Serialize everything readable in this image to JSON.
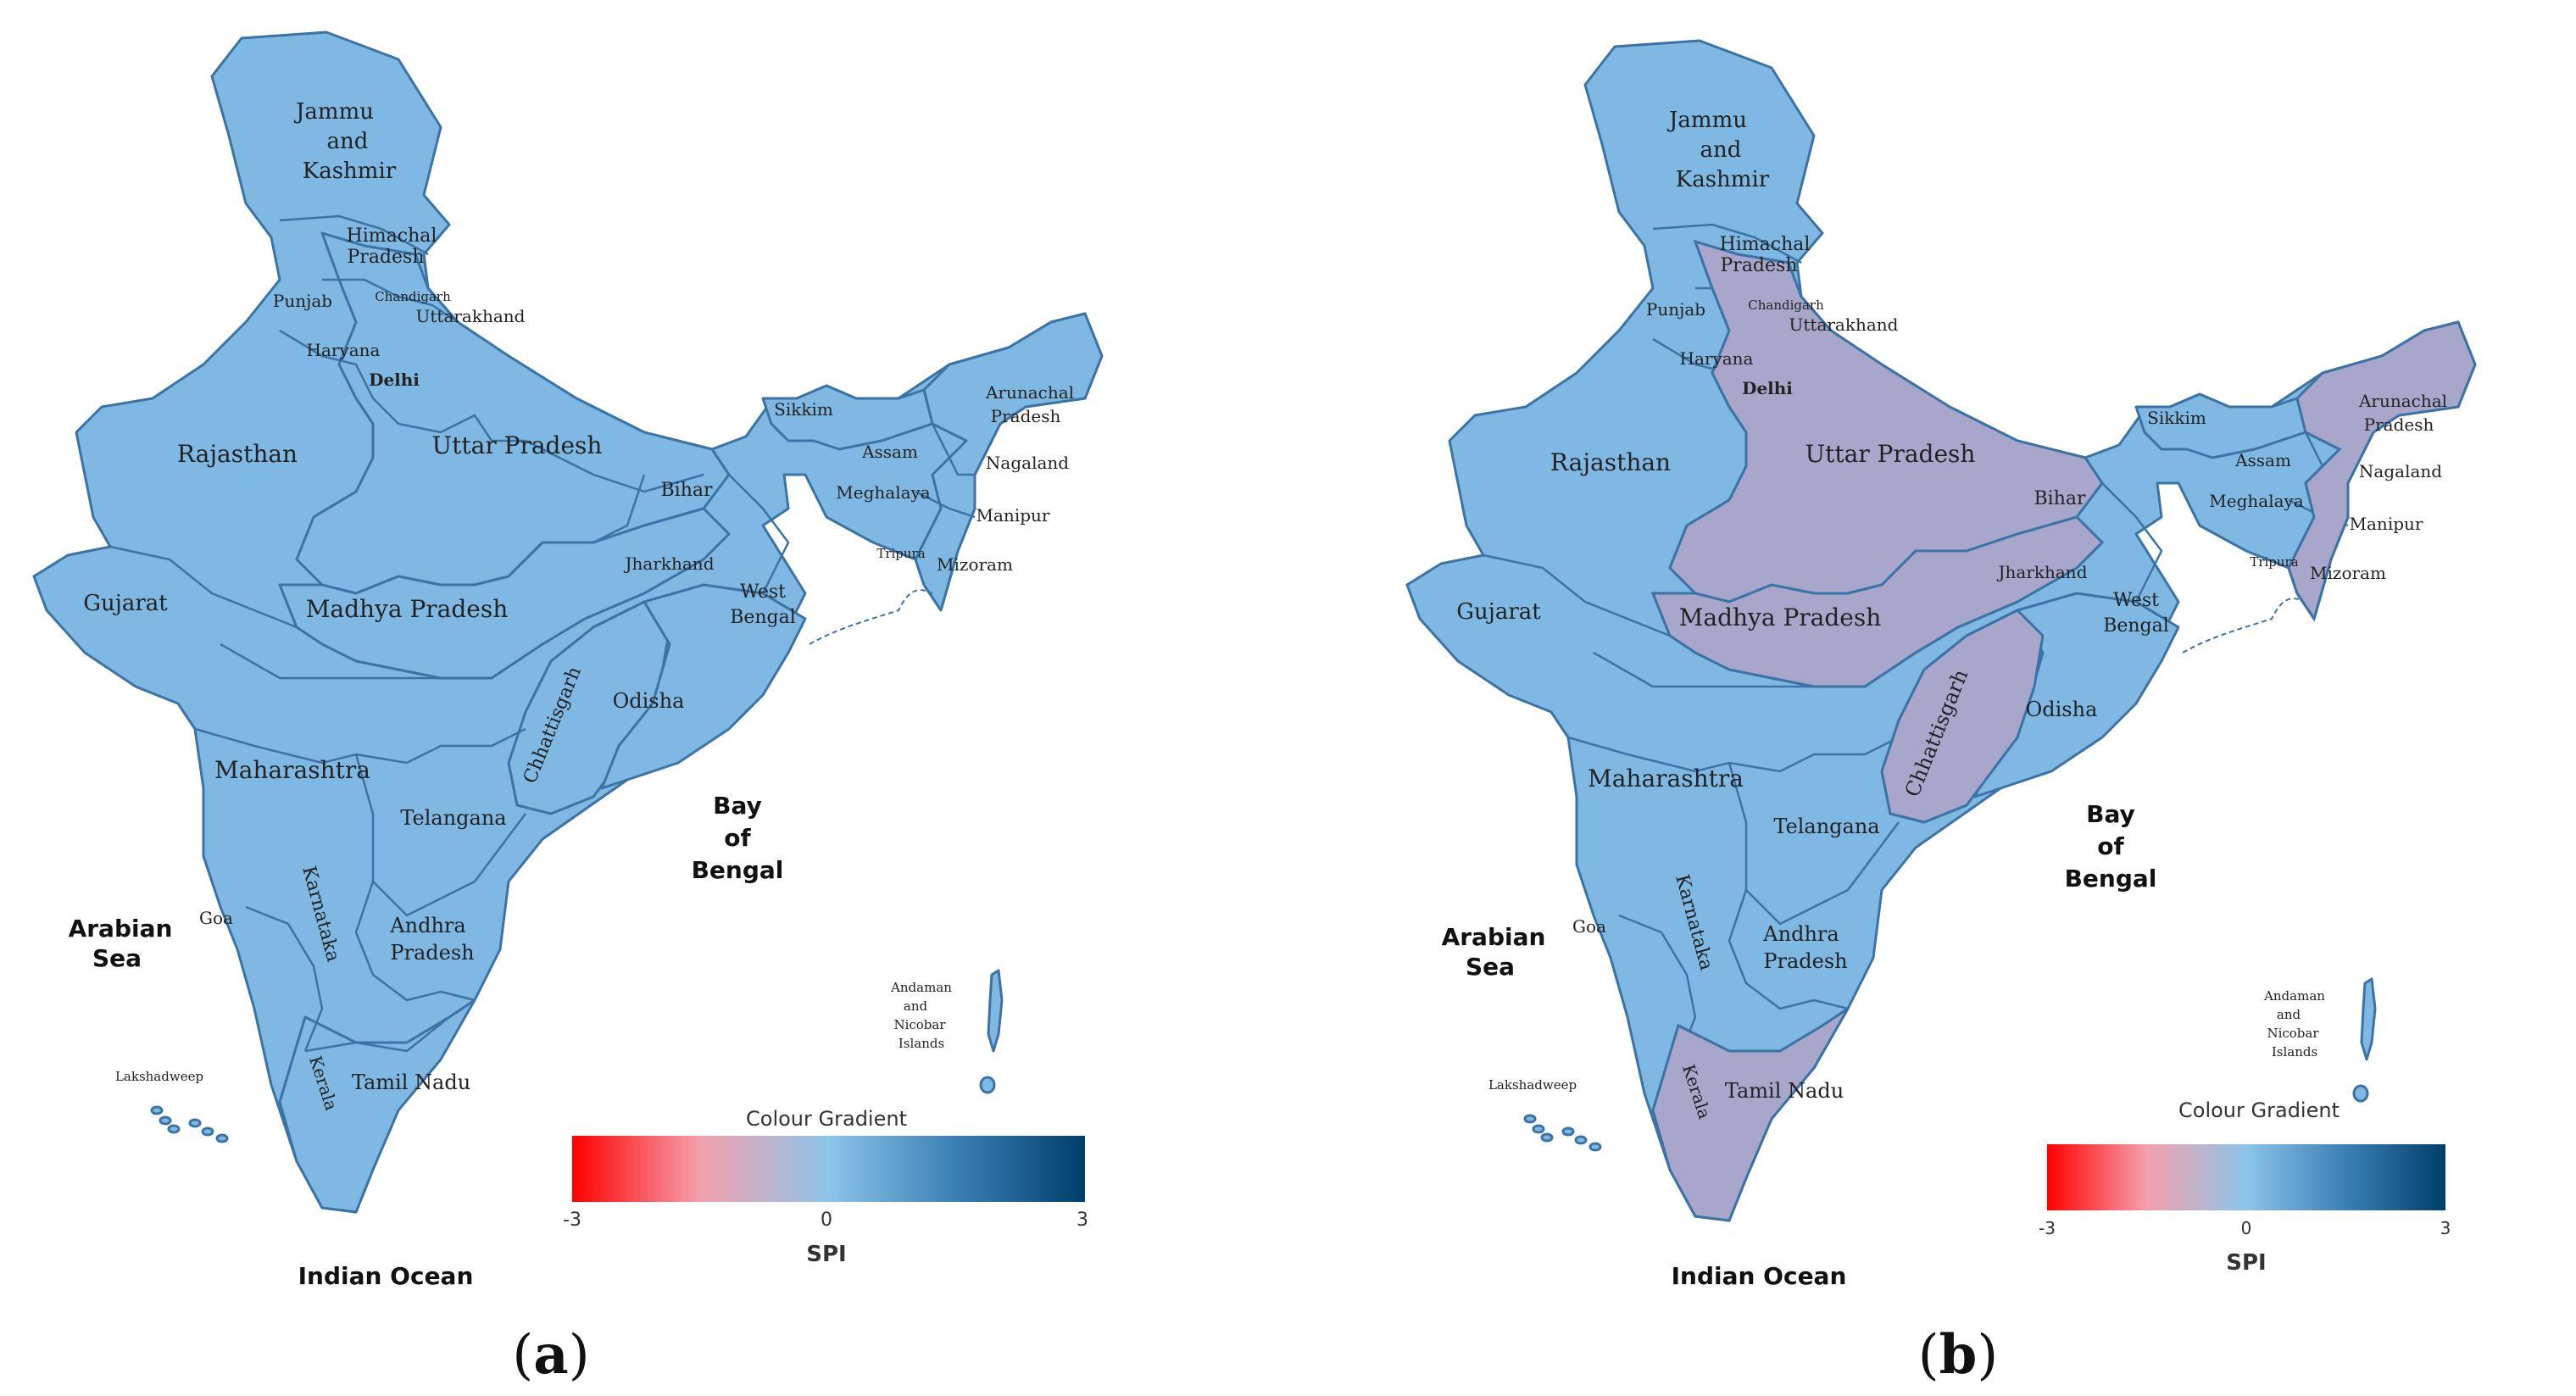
{
  "panels": [
    {
      "id": "a",
      "letter_open": "(",
      "letter": "a",
      "letter_close": ")",
      "legend": {
        "title": "Colour Gradient",
        "min": "-3",
        "mid": "0",
        "max": "3",
        "label": "SPI"
      },
      "seas": {
        "arabian": [
          "Arabian",
          "Sea"
        ],
        "bay": [
          "Bay",
          "of",
          "Bengal"
        ],
        "indian": "Indian Ocean"
      },
      "states": {
        "jk": [
          "Jammu",
          "and",
          "Kashmir"
        ],
        "hp": [
          "Himachal",
          "Pradesh"
        ],
        "punjab": "Punjab",
        "chandigarh": "Chandigarh",
        "uttarakhand": "Uttarakhand",
        "haryana": "Haryana",
        "delhi": "Delhi",
        "rajasthan": "Rajasthan",
        "up": "Uttar Pradesh",
        "bihar": "Bihar",
        "sikkim": "Sikkim",
        "arunachal": [
          "Arunachal",
          "Pradesh"
        ],
        "assam": "Assam",
        "nagaland": "Nagaland",
        "meghalaya": "Meghalaya",
        "manipur": "Manipur",
        "tripura": "Tripura",
        "mizoram": "Mizoram",
        "gujarat": "Gujarat",
        "mp": "Madhya Pradesh",
        "jharkhand": "Jharkhand",
        "wb": [
          "West",
          "Bengal"
        ],
        "chhattisgarh": "Chhattisgarh",
        "odisha": "Odisha",
        "maharashtra": "Maharashtra",
        "telangana": "Telangana",
        "goa": "Goa",
        "karnataka": "Karnataka",
        "ap": [
          "Andhra",
          "Pradesh"
        ],
        "tn": "Tamil Nadu",
        "kerala": "Kerala",
        "lakshadweep": "Lakshadweep",
        "andaman": [
          "Andaman",
          "and",
          "Nicobar",
          "Islands"
        ]
      },
      "dry_regions": []
    },
    {
      "id": "b",
      "letter_open": "(",
      "letter": "b",
      "letter_close": ")",
      "legend": {
        "title": "Colour Gradient",
        "min": "-3",
        "mid": "0",
        "max": "3",
        "label": "SPI"
      },
      "seas": {
        "arabian": [
          "Arabian",
          "Sea"
        ],
        "bay": [
          "Bay",
          "of",
          "Bengal"
        ],
        "indian": "Indian Ocean"
      },
      "states": {
        "jk": [
          "Jammu",
          "and",
          "Kashmir"
        ],
        "hp": [
          "Himachal",
          "Pradesh"
        ],
        "punjab": "Punjab",
        "chandigarh": "Chandigarh",
        "uttarakhand": "Uttarakhand",
        "haryana": "Haryana",
        "delhi": "Delhi",
        "rajasthan": "Rajasthan",
        "up": "Uttar Pradesh",
        "bihar": "Bihar",
        "sikkim": "Sikkim",
        "arunachal": [
          "Arunachal",
          "Pradesh"
        ],
        "assam": "Assam",
        "nagaland": "Nagaland",
        "meghalaya": "Meghalaya",
        "manipur": "Manipur",
        "tripura": "Tripura",
        "mizoram": "Mizoram",
        "gujarat": "Gujarat",
        "mp": "Madhya Pradesh",
        "jharkhand": "Jharkhand",
        "wb": [
          "West",
          "Bengal"
        ],
        "chhattisgarh": "Chhattisgarh",
        "odisha": "Odisha",
        "maharashtra": "Maharashtra",
        "telangana": "Telangana",
        "goa": "Goa",
        "karnataka": "Karnataka",
        "ap": [
          "Andhra",
          "Pradesh"
        ],
        "tn": "Tamil Nadu",
        "kerala": "Kerala",
        "lakshadweep": "Lakshadweep",
        "andaman": [
          "Andaman",
          "and",
          "Nicobar",
          "Islands"
        ]
      },
      "dry_regions": [
        "north",
        "central",
        "chhattisgarh",
        "northeast",
        "south"
      ]
    }
  ],
  "colors": {
    "land": "#7fb8e2",
    "dry": "#a9a6cc",
    "border": "#3b73a6",
    "gradient_low": "#ff0000",
    "gradient_mid": "#8cc4ea",
    "gradient_high": "#003f6b"
  }
}
